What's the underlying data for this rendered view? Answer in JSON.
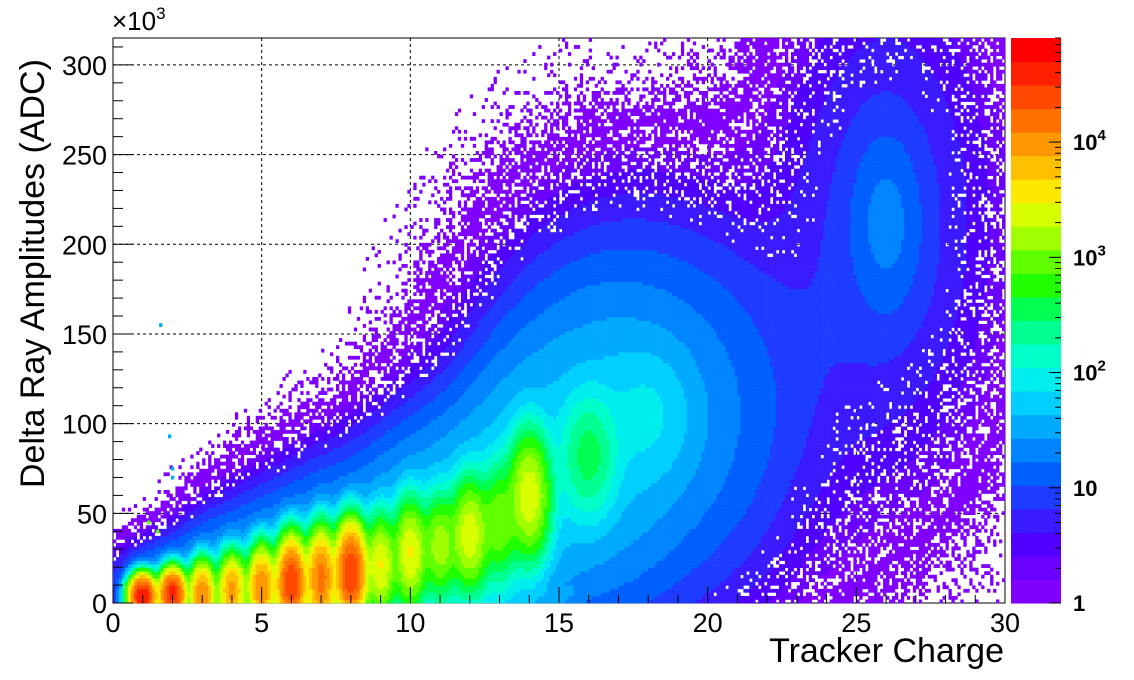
{
  "chart_data": {
    "type": "heatmap",
    "xlabel": "Tracker Charge",
    "ylabel": "Delta Ray Amplitudes (ADC)",
    "y_multiplier": "×10",
    "y_multiplier_exp": "3",
    "xlim": [
      0,
      30
    ],
    "ylim": [
      0,
      315
    ],
    "x_ticks": [
      0,
      5,
      10,
      15,
      20,
      25,
      30
    ],
    "y_ticks": [
      0,
      50,
      100,
      150,
      200,
      250,
      300
    ],
    "grid": true,
    "colorbar": {
      "scale": "log",
      "range": [
        1,
        80000
      ],
      "tick_labels": [
        {
          "value": 1,
          "base": "1",
          "exp": ""
        },
        {
          "value": 10,
          "base": "10",
          "exp": ""
        },
        {
          "value": 100,
          "base": "10",
          "exp": "2"
        },
        {
          "value": 1000,
          "base": "10",
          "exp": "3"
        },
        {
          "value": 10000,
          "base": "10",
          "exp": "4"
        }
      ],
      "colors": [
        "#7f00ff",
        "#6a00ff",
        "#5000ff",
        "#3a1aff",
        "#1e3cff",
        "#0060ff",
        "#0085ff",
        "#00aaff",
        "#00cfff",
        "#00eeee",
        "#00ffc8",
        "#00ff90",
        "#00ff50",
        "#20ff00",
        "#60ff00",
        "#a0ff00",
        "#d8ff00",
        "#ffe800",
        "#ffc000",
        "#ff9800",
        "#ff7000",
        "#ff4800",
        "#ff2000",
        "#ff0000"
      ]
    },
    "clusters": [
      {
        "x": 1.0,
        "y": 4,
        "peak": 50000,
        "sx": 0.2,
        "sy": 5
      },
      {
        "x": 2.0,
        "y": 5,
        "peak": 40000,
        "sx": 0.2,
        "sy": 6
      },
      {
        "x": 3.0,
        "y": 5,
        "peak": 12000,
        "sx": 0.2,
        "sy": 8
      },
      {
        "x": 4.0,
        "y": 7,
        "peak": 9000,
        "sx": 0.22,
        "sy": 9
      },
      {
        "x": 5.0,
        "y": 9,
        "peak": 12000,
        "sx": 0.22,
        "sy": 10
      },
      {
        "x": 6.0,
        "y": 11,
        "peak": 30000,
        "sx": 0.23,
        "sy": 11
      },
      {
        "x": 7.0,
        "y": 14,
        "peak": 15000,
        "sx": 0.23,
        "sy": 12
      },
      {
        "x": 8.0,
        "y": 17,
        "peak": 30000,
        "sx": 0.24,
        "sy": 12
      },
      {
        "x": 9.0,
        "y": 21,
        "peak": 3000,
        "sx": 0.25,
        "sy": 13
      },
      {
        "x": 10.0,
        "y": 28,
        "peak": 3000,
        "sx": 0.28,
        "sy": 14
      },
      {
        "x": 11.0,
        "y": 32,
        "peak": 1500,
        "sx": 0.3,
        "sy": 14
      },
      {
        "x": 12.0,
        "y": 38,
        "peak": 2500,
        "sx": 0.32,
        "sy": 15
      },
      {
        "x": 13.0,
        "y": 45,
        "peak": 1000,
        "sx": 0.33,
        "sy": 16
      },
      {
        "x": 14.0,
        "y": 60,
        "peak": 2500,
        "sx": 0.35,
        "sy": 17
      },
      {
        "x": 16.0,
        "y": 82,
        "peak": 300,
        "sx": 0.5,
        "sy": 18
      },
      {
        "x": 18.0,
        "y": 105,
        "peak": 40,
        "sx": 0.9,
        "sy": 22
      },
      {
        "x": 26.0,
        "y": 212,
        "peak": 12,
        "sx": 0.7,
        "sy": 30
      }
    ],
    "band": {
      "x_min": 2.8,
      "x_max": 15.5,
      "y_min": 0,
      "y_max": 9,
      "peak": 3000
    },
    "isolated_points": [
      {
        "x": 1.9,
        "y": 93,
        "count": 30
      },
      {
        "x": 1.6,
        "y": 155,
        "count": 30
      },
      {
        "x": 2.0,
        "y": 75,
        "count": 30
      },
      {
        "x": 2.0,
        "y": 70,
        "count": 30
      },
      {
        "x": 1.2,
        "y": 45,
        "count": 1000
      },
      {
        "x": 1.5,
        "y": 40,
        "count": 1000
      }
    ]
  }
}
